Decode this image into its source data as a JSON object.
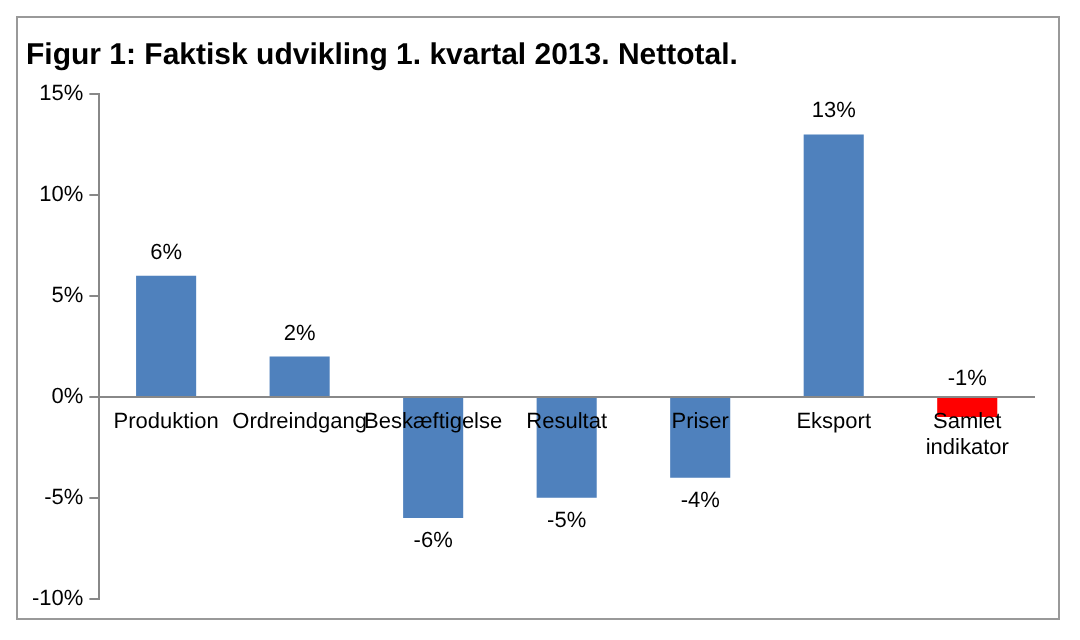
{
  "chart_data": {
    "type": "bar",
    "title": "Figur 1: Faktisk udvikling 1. kvartal 2013. Nettotal.",
    "categories": [
      "Produktion",
      "Ordreindgang",
      "Beskæftigelse",
      "Resultat",
      "Priser",
      "Eksport",
      "Samlet indikator"
    ],
    "values": [
      6,
      2,
      -6,
      -5,
      -4,
      13,
      -1
    ],
    "colors": [
      "#4f81bd",
      "#4f81bd",
      "#4f81bd",
      "#4f81bd",
      "#4f81bd",
      "#4f81bd",
      "#ff0000"
    ],
    "value_labels": [
      "6%",
      "2%",
      "-6%",
      "-5%",
      "-4%",
      "13%",
      "-1%"
    ],
    "ylim": [
      -10,
      15
    ],
    "yticks": [
      {
        "value": -10,
        "label": "-10%"
      },
      {
        "value": -5,
        "label": "-5%"
      },
      {
        "value": 0,
        "label": "0%"
      },
      {
        "value": 5,
        "label": "5%"
      },
      {
        "value": 10,
        "label": "10%"
      },
      {
        "value": 15,
        "label": "15%"
      }
    ],
    "grid": false,
    "legend": false
  }
}
